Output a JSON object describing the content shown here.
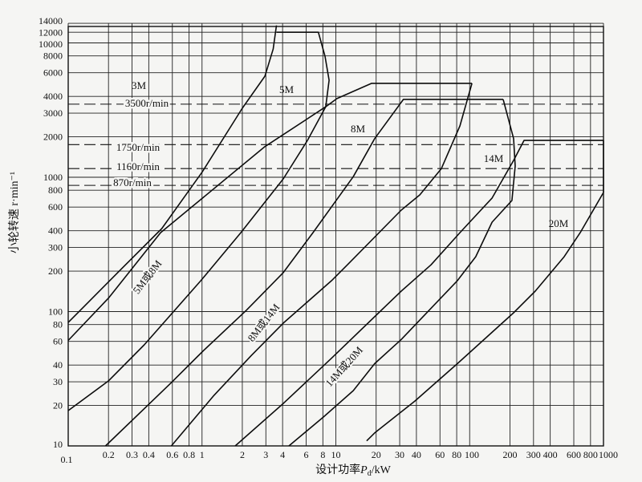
{
  "chart_data": {
    "type": "line",
    "title": "",
    "xlabel": "设计功率P_d/kW",
    "xlabel_main": "设计功率",
    "xlabel_var": "P",
    "xlabel_sub": "d",
    "xlabel_unit": "/kW",
    "ylabel": "小轮转速 r·min⁻¹",
    "x_scale": "log",
    "y_scale": "log",
    "xlim": [
      0.1,
      1000
    ],
    "ylim": [
      10,
      14000
    ],
    "grid": true,
    "x_ticks": [
      "0.1",
      "0.2",
      "0.3",
      "0.4",
      "0.6",
      "0.8",
      "1",
      "2",
      "3",
      "4",
      "6",
      "8",
      "10",
      "20",
      "30",
      "40",
      "60",
      "80",
      "100",
      "200",
      "300",
      "400",
      "600",
      "800",
      "1000"
    ],
    "y_ticks": [
      "10",
      "20",
      "30",
      "40",
      "60",
      "80",
      "100",
      "200",
      "300",
      "400",
      "600",
      "800",
      "1000",
      "2000",
      "3000",
      "4000",
      "6000",
      "8000",
      "10000",
      "12000",
      "14000"
    ],
    "reference_speeds": [
      {
        "value": 3500,
        "label": "3500r/min"
      },
      {
        "value": 1750,
        "label": "1750r/min"
      },
      {
        "value": 1160,
        "label": "1160r/min"
      },
      {
        "value": 870,
        "label": "870r/min"
      }
    ],
    "region_labels": [
      "3M",
      "5M",
      "8M",
      "14M",
      "20M",
      "5M或8M",
      "8M或14M",
      "14M或20M"
    ],
    "boundaries": [
      {
        "points": [
          [
            0.1,
            83
          ],
          [
            0.25,
            208
          ],
          [
            0.5,
            415
          ],
          [
            1,
            1090
          ],
          [
            2,
            3260
          ],
          [
            2.95,
            5650
          ],
          [
            3.4,
            9000
          ],
          [
            3.6,
            13500
          ]
        ]
      },
      {
        "points": [
          [
            3.6,
            12000
          ],
          [
            7.4,
            12000
          ],
          [
            8.3,
            7960
          ],
          [
            8.9,
            5280
          ],
          [
            8.4,
            3350
          ]
        ]
      },
      {
        "points": [
          [
            0.1,
            61
          ],
          [
            0.2,
            126
          ],
          [
            0.49,
            387
          ],
          [
            2.95,
            1690
          ],
          [
            8.4,
            3350
          ],
          [
            10.2,
            3850
          ],
          [
            18.5,
            5000
          ],
          [
            104,
            5000
          ]
        ]
      },
      {
        "points": [
          [
            0.1,
            18.3
          ],
          [
            0.2,
            30.5
          ],
          [
            0.37,
            56.5
          ],
          [
            0.98,
            170
          ],
          [
            1.95,
            387
          ],
          [
            4.05,
            973
          ],
          [
            6.13,
            1880
          ],
          [
            8.4,
            3350
          ]
        ]
      },
      {
        "points": [
          [
            0.19,
            10
          ],
          [
            0.59,
            29.6
          ],
          [
            1.02,
            51
          ],
          [
            2.14,
            102
          ],
          [
            4.05,
            195
          ],
          [
            6.75,
            387
          ],
          [
            13.5,
            1010
          ],
          [
            19.5,
            1940
          ],
          [
            32,
            3800
          ],
          [
            178,
            3800
          ]
        ]
      },
      {
        "points": [
          [
            0.59,
            10
          ],
          [
            1.23,
            23.8
          ],
          [
            2.33,
            47
          ],
          [
            4.05,
            82
          ],
          [
            9.3,
            170
          ],
          [
            12.2,
            223
          ],
          [
            30.8,
            569
          ],
          [
            42.4,
            739
          ],
          [
            61.5,
            1160
          ],
          [
            84.5,
            2410
          ],
          [
            104,
            5000
          ]
        ]
      },
      {
        "points": [
          [
            1.77,
            10
          ],
          [
            4.05,
            20.7
          ],
          [
            9.3,
            45
          ],
          [
            20.9,
            98
          ],
          [
            30.8,
            142
          ],
          [
            51.4,
            223
          ],
          [
            84.5,
            387
          ],
          [
            147,
            700
          ],
          [
            213,
            1335
          ],
          [
            255,
            1880
          ],
          [
            1000,
            1880
          ],
          [
            1000,
            770
          ]
        ]
      },
      {
        "points": [
          [
            4.46,
            10
          ],
          [
            8.07,
            16.4
          ],
          [
            13.5,
            25.8
          ],
          [
            19.5,
            41
          ],
          [
            30.8,
            62
          ],
          [
            81,
            170
          ],
          [
            111,
            256
          ],
          [
            147,
            463
          ],
          [
            207,
            671
          ],
          [
            219,
            1210
          ],
          [
            213,
            1940
          ],
          [
            178,
            3800
          ]
        ]
      },
      {
        "points": [
          [
            17,
            10.9
          ],
          [
            19.5,
            12.5
          ],
          [
            39,
            21.6
          ],
          [
            81,
            41
          ],
          [
            213,
            98
          ],
          [
            309,
            142
          ],
          [
            508,
            256
          ],
          [
            670,
            387
          ],
          [
            1000,
            770
          ]
        ]
      }
    ]
  }
}
